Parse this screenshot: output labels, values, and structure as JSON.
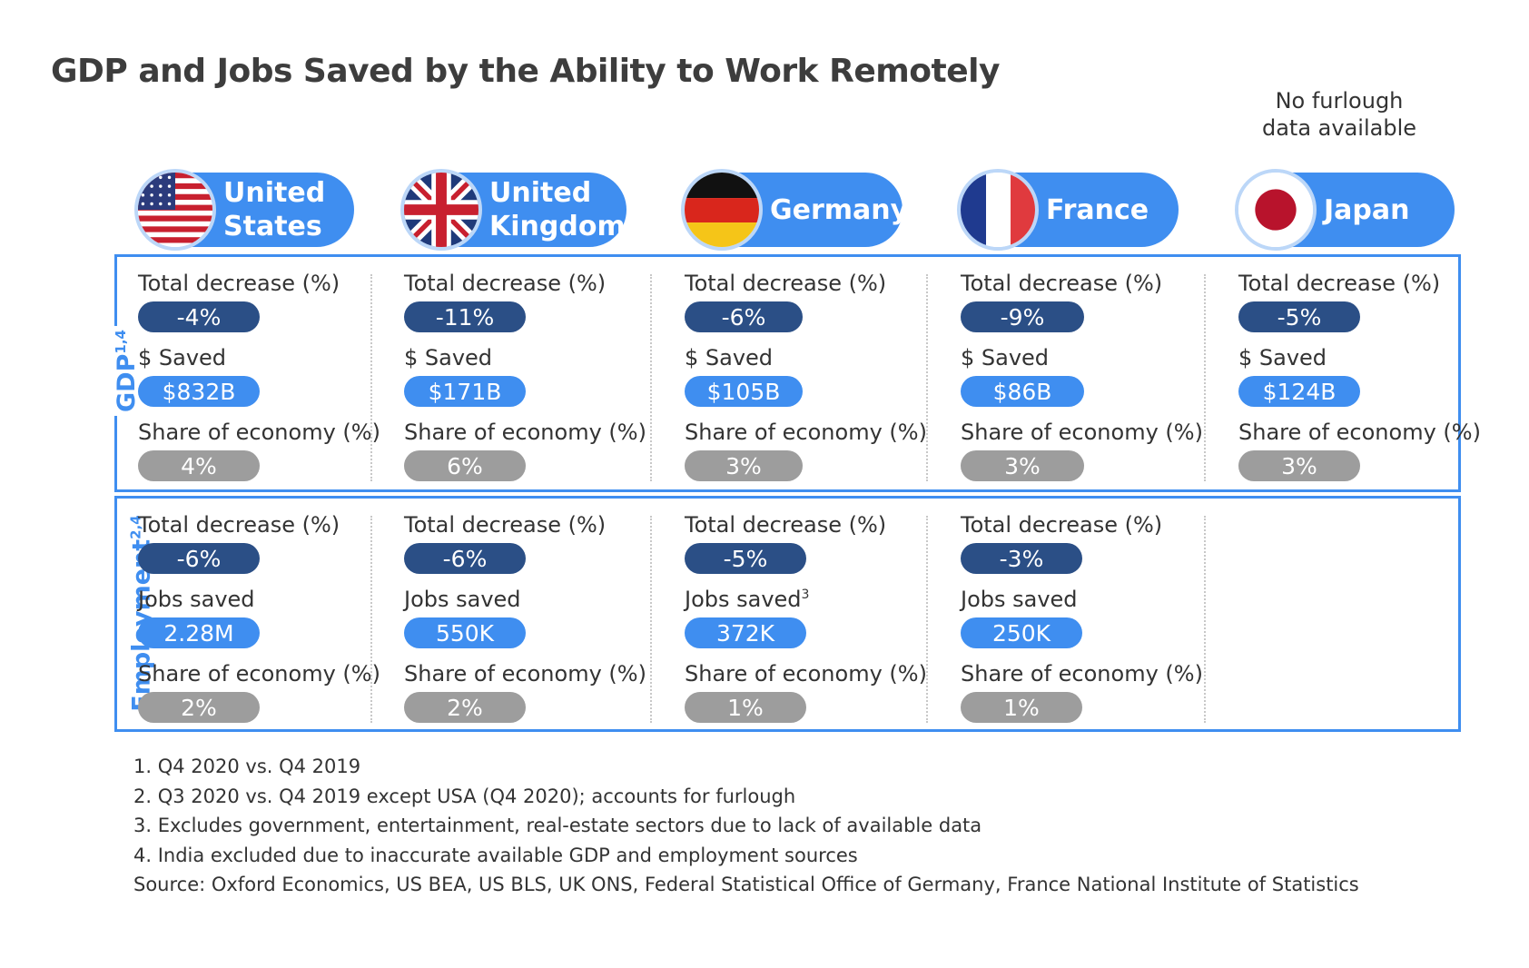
{
  "title": "GDP and Jobs Saved by the Ability to Work Remotely",
  "sections": {
    "gdp": {
      "label": "GDP",
      "sup": "1,4"
    },
    "employment": {
      "label": "Employment",
      "sup": "2,4"
    }
  },
  "colors": {
    "accent": "#3f8ef0",
    "dark_pill": "#2b4f86",
    "grey_pill": "#9d9d9d"
  },
  "chart_data": {
    "type": "table",
    "title": "GDP and Jobs Saved by the Ability to Work Remotely",
    "countries": [
      {
        "name": "United\nStates",
        "flag_icon": "us-flag-icon",
        "gdp": {
          "decrease_label": "Total decrease (%)",
          "decrease": "-4%",
          "saved_label": "$ Saved",
          "saved": "$832B",
          "share_label": "Share of economy (%)",
          "share": "4%"
        },
        "employment": {
          "decrease_label": "Total decrease (%)",
          "decrease": "-6%",
          "saved_label": "Jobs saved",
          "saved_sup": "",
          "saved": "2.28M",
          "share_label": "Share of economy (%)",
          "share": "2%"
        }
      },
      {
        "name": "United\nKingdom",
        "flag_icon": "uk-flag-icon",
        "gdp": {
          "decrease_label": "Total decrease (%)",
          "decrease": "-11%",
          "saved_label": "$ Saved",
          "saved": "$171B",
          "share_label": "Share of economy (%)",
          "share": "6%"
        },
        "employment": {
          "decrease_label": "Total decrease (%)",
          "decrease": "-6%",
          "saved_label": "Jobs saved",
          "saved_sup": "",
          "saved": "550K",
          "share_label": "Share of economy (%)",
          "share": "2%"
        }
      },
      {
        "name": "Germany",
        "flag_icon": "germany-flag-icon",
        "gdp": {
          "decrease_label": "Total decrease (%)",
          "decrease": "-6%",
          "saved_label": "$ Saved",
          "saved": "$105B",
          "share_label": "Share of economy (%)",
          "share": "3%"
        },
        "employment": {
          "decrease_label": "Total decrease (%)",
          "decrease": "-5%",
          "saved_label": "Jobs saved",
          "saved_sup": "3",
          "saved": "372K",
          "share_label": "Share of economy (%)",
          "share": "1%"
        }
      },
      {
        "name": "France",
        "flag_icon": "france-flag-icon",
        "gdp": {
          "decrease_label": "Total decrease (%)",
          "decrease": "-9%",
          "saved_label": "$ Saved",
          "saved": "$86B",
          "share_label": "Share of economy (%)",
          "share": "3%"
        },
        "employment": {
          "decrease_label": "Total decrease (%)",
          "decrease": "-3%",
          "saved_label": "Jobs saved",
          "saved_sup": "",
          "saved": "250K",
          "share_label": "Share of economy (%)",
          "share": "1%"
        }
      },
      {
        "name": "Japan",
        "flag_icon": "japan-flag-icon",
        "gdp": {
          "decrease_label": "Total decrease (%)",
          "decrease": "-5%",
          "saved_label": "$ Saved",
          "saved": "$124B",
          "share_label": "Share of economy (%)",
          "share": "3%"
        },
        "employment": {
          "no_data": "No furlough\ndata available"
        }
      }
    ]
  },
  "footnotes": [
    "1. Q4 2020 vs. Q4 2019",
    "2. Q3 2020 vs. Q4 2019 except USA (Q4 2020); accounts for furlough",
    "3. Excludes government, entertainment, real-estate sectors due to lack of available data",
    "4. India excluded due to inaccurate available GDP and employment sources",
    "Source: Oxford Economics, US BEA, US BLS, UK ONS, Federal Statistical Office of Germany, France National Institute of Statistics"
  ]
}
